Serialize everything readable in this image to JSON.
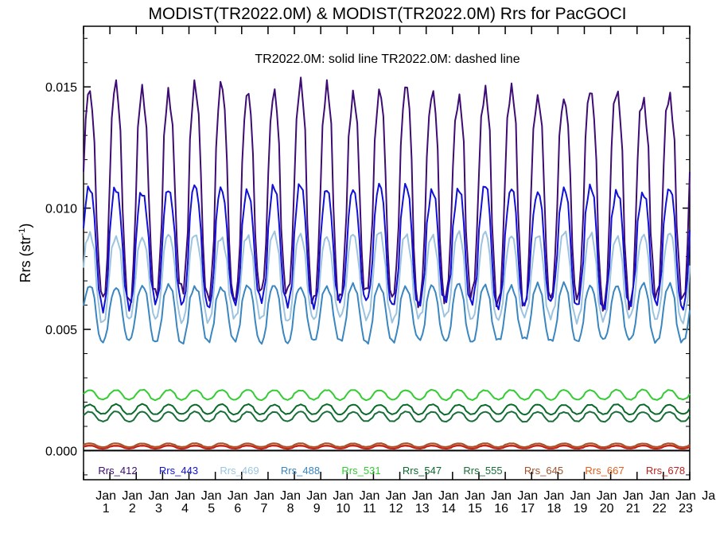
{
  "chart_data": {
    "type": "line",
    "title": "MODIST(TR2022.0M) & MODIST(TR2022.0M)  Rrs for PacGOCI",
    "annotation": "TR2022.0M: solid line   TR2022.0M: dashed line",
    "ylabel_main": "Rrs (str",
    "ylabel_sup": "-1",
    "ylabel_close": ")",
    "ylim": [
      -0.0012,
      0.0175
    ],
    "yticks": [
      "0.000",
      "0.005",
      "0.010",
      "0.015"
    ],
    "ytick_values": [
      0.0,
      0.005,
      0.01,
      0.015
    ],
    "x_month_labels": [
      "Jan",
      "Jan",
      "Jan",
      "Jan",
      "Jan",
      "Jan",
      "Jan",
      "Jan",
      "Jan",
      "Jan",
      "Jan",
      "Jan",
      "Jan",
      "Jan",
      "Jan",
      "Jan",
      "Jan",
      "Jan",
      "Jan",
      "Jan",
      "Jan",
      "Jan",
      "Jan",
      "Jan"
    ],
    "x_year_labels": [
      "1",
      "2",
      "3",
      "4",
      "5",
      "6",
      "7",
      "8",
      "9",
      "10",
      "11",
      "12",
      "13",
      "14",
      "15",
      "16",
      "17",
      "18",
      "19",
      "20",
      "21",
      "22",
      "23"
    ],
    "series": [
      {
        "name": "Rrs_412",
        "color": "#3d0c74",
        "min": 0.0062,
        "max": 0.0148,
        "values": []
      },
      {
        "name": "Rrs_443",
        "color": "#1010d8",
        "min": 0.006,
        "max": 0.0108,
        "values": []
      },
      {
        "name": "Rrs_469",
        "color": "#9cc4e0",
        "min": 0.0054,
        "max": 0.0089,
        "values": []
      },
      {
        "name": "Rrs_488",
        "color": "#3a86c0",
        "min": 0.0045,
        "max": 0.0068,
        "values": []
      },
      {
        "name": "Rrs_531",
        "color": "#33cc33",
        "min": 0.0021,
        "max": 0.0025,
        "values": []
      },
      {
        "name": "Rrs_547",
        "color": "#0a6a2a",
        "min": 0.0015,
        "max": 0.0019,
        "values": []
      },
      {
        "name": "Rrs_555",
        "color": "#1a6e3a",
        "min": 0.0012,
        "max": 0.0016,
        "values": []
      },
      {
        "name": "Rrs_645",
        "color": "#a0522d",
        "min": 0.00015,
        "max": 0.0003,
        "values": []
      },
      {
        "name": "Rrs_667",
        "color": "#e0601a",
        "min": 0.0001,
        "max": 0.00022,
        "values": []
      },
      {
        "name": "Rrs_678",
        "color": "#c02020",
        "min": 8e-05,
        "max": 0.0002,
        "values": []
      }
    ],
    "grid": false,
    "legend_placement": "bottom inside plot"
  }
}
